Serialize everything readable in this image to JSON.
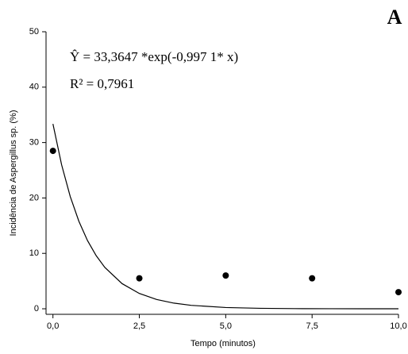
{
  "chart_data": {
    "type": "scatter",
    "panel_label": "A",
    "equation": "Ŷ = 33,3647 *exp(-0,997 1* x)",
    "r_squared": "R² = 0,7961",
    "x_label": "Tempo (minutos)",
    "y_label": "Incidência de Aspergillus sp. (%)",
    "x": [
      0,
      2.5,
      5,
      7.5,
      10
    ],
    "values": [
      28.5,
      5.5,
      6,
      5.5,
      3
    ],
    "color": "#000000",
    "fit": {
      "color": "#000000",
      "x": [
        0,
        0.25,
        0.5,
        0.75,
        1,
        1.25,
        1.5,
        2,
        2.5,
        3,
        3.5,
        4,
        5,
        6,
        7,
        8,
        9,
        10
      ],
      "values": [
        33.36,
        26.0,
        20.27,
        15.8,
        12.31,
        9.6,
        7.48,
        4.54,
        2.76,
        1.68,
        1.02,
        0.62,
        0.23,
        0.08,
        0.03,
        0.01,
        0.0,
        0.0
      ]
    },
    "xlim": [
      -0.2,
      10
    ],
    "ylim": [
      -1,
      50
    ],
    "xticks": [
      {
        "value": 0,
        "label": "0,0"
      },
      {
        "value": 2.5,
        "label": "2,5"
      },
      {
        "value": 5,
        "label": "5,0"
      },
      {
        "value": 7.5,
        "label": "7,5"
      },
      {
        "value": 10,
        "label": "10,0"
      }
    ],
    "yticks": [
      0,
      10,
      20,
      30,
      40,
      50
    ],
    "grid": false
  }
}
